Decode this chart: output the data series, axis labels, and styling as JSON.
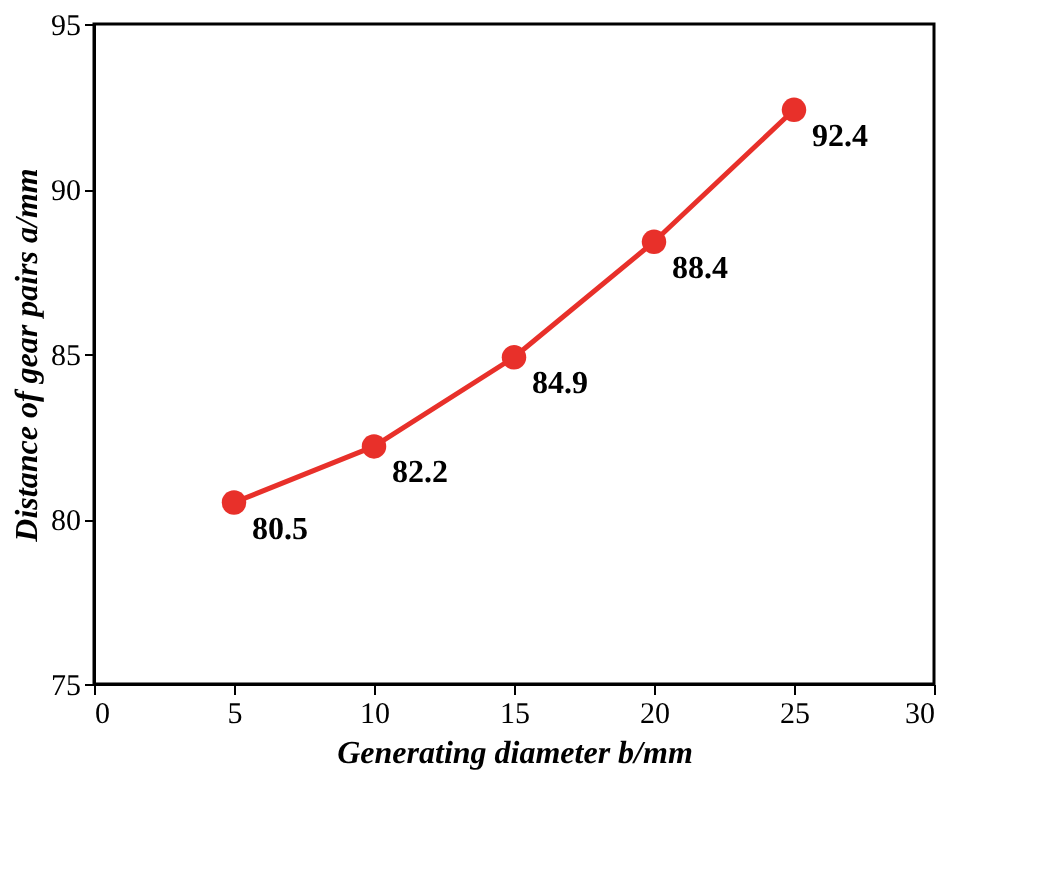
{
  "chart_data": {
    "type": "line",
    "xlabel": "Generating diameter b/mm",
    "ylabel": "Distance of gear pairs a/mm",
    "x": [
      5,
      10,
      15,
      20,
      25
    ],
    "series": [
      {
        "color": "#e8302a",
        "values": [
          80.5,
          82.2,
          84.9,
          88.4,
          92.4
        ]
      }
    ],
    "xlim": [
      0,
      30
    ],
    "xticks": [
      0,
      5,
      10,
      15,
      20,
      25,
      30
    ],
    "ylim": [
      75,
      95
    ],
    "yticks": [
      75,
      80,
      85,
      90,
      95
    ],
    "grid": false,
    "marker": "circle",
    "line_style": "solid",
    "data_labels": true
  }
}
